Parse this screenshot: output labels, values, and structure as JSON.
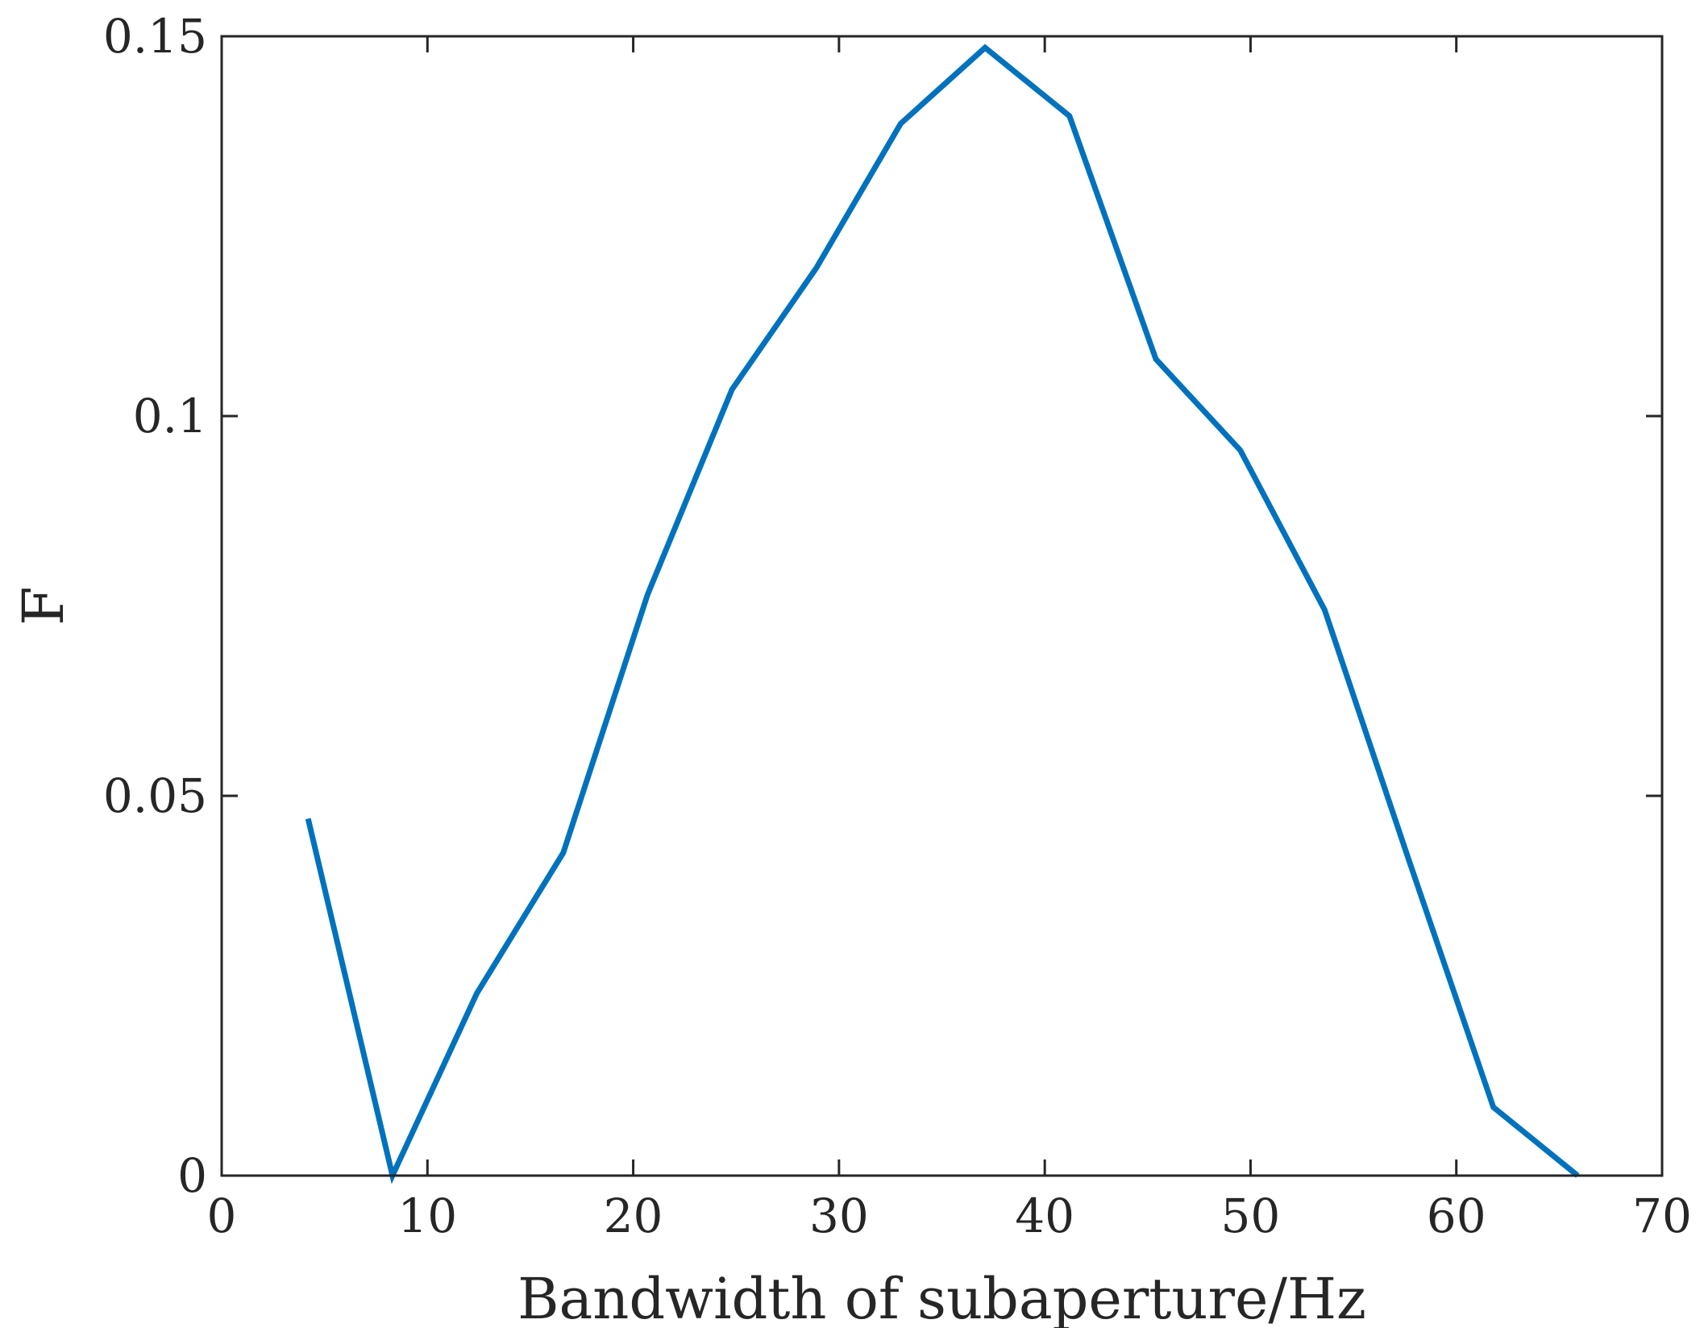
{
  "chart_data": {
    "type": "line",
    "xlabel": "Bandwidth of subaperture/Hz",
    "ylabel": "F",
    "xlim": [
      0,
      70
    ],
    "ylim": [
      0,
      0.15
    ],
    "xticks": [
      0,
      10,
      20,
      30,
      40,
      50,
      60,
      70
    ],
    "xtick_labels": [
      "0",
      "10",
      "20",
      "30",
      "40",
      "50",
      "60",
      "70"
    ],
    "yticks": [
      0,
      0.05,
      0.1,
      0.15
    ],
    "ytick_labels": [
      "0",
      "0.05",
      "0.1",
      "0.15"
    ],
    "grid": false,
    "box": true,
    "series": [
      {
        "color": "#0072BD",
        "x": [
          4.2,
          8.3,
          12.4,
          16.6,
          20.7,
          24.8,
          28.9,
          33.0,
          37.1,
          41.2,
          45.4,
          49.5,
          53.6,
          57.7,
          61.8,
          65.9
        ],
        "y": [
          0.047,
          0.0,
          0.024,
          0.0425,
          0.0765,
          0.1035,
          0.1195,
          0.1385,
          0.1485,
          0.1395,
          0.1075,
          0.0955,
          0.0745,
          0.0415,
          0.009,
          0.0
        ]
      }
    ]
  }
}
